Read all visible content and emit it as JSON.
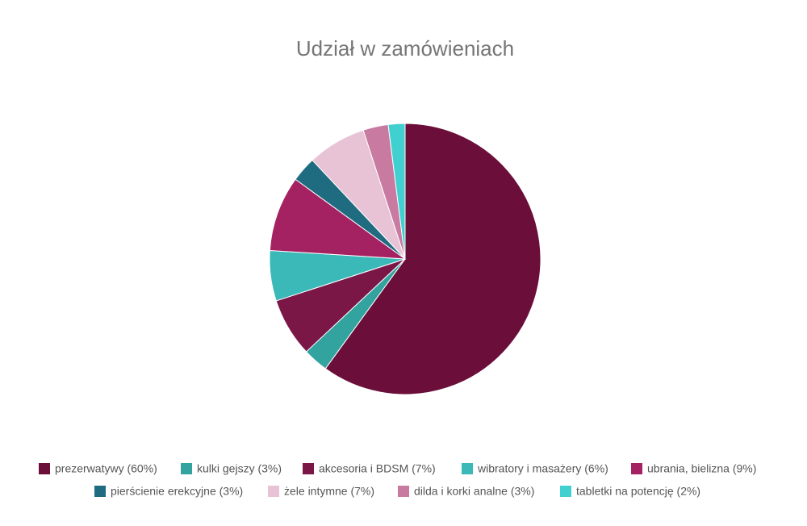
{
  "chart_data": {
    "type": "pie",
    "title": "Udział w zamówieniach",
    "categories": [
      "prezerwatywy (60%)",
      "kulki gejszy (3%)",
      "akcesoria i BDSM (7%)",
      "wibratory i masażery (6%)",
      "ubrania, bielizna (9%)",
      "pierścienie erekcyjne (3%)",
      "żele intymne (7%)",
      "dilda i korki analne (3%)",
      "tabletki na potencję (2%)"
    ],
    "values": [
      60,
      3,
      7,
      6,
      9,
      3,
      7,
      3,
      2
    ],
    "colors": [
      "#6b0f3a",
      "#33a3a0",
      "#7a1747",
      "#3bb8b8",
      "#a52262",
      "#1f6b80",
      "#e8c3d6",
      "#c87aa0",
      "#40d0d0"
    ],
    "legend": "bottom"
  }
}
